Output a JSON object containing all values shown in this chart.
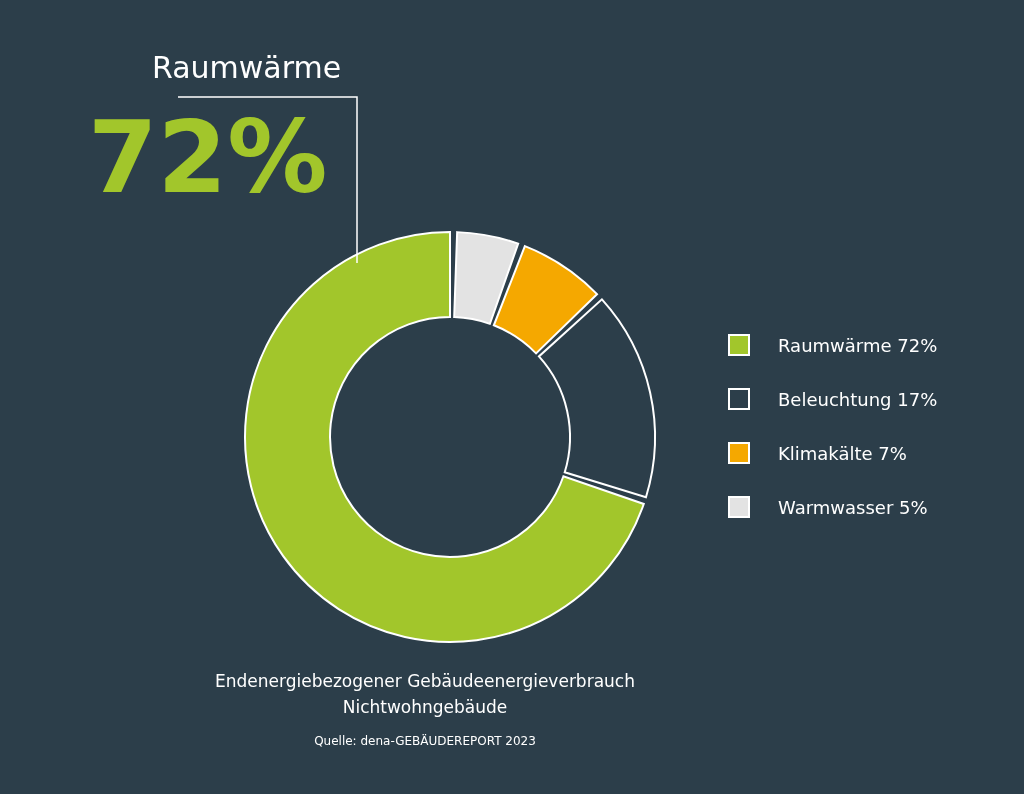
{
  "chart_data": {
    "type": "donut",
    "title": "Endenergiebezogener Gebäudeenergieverbrauch\nNichtwohngebäude",
    "categories": [
      "Raumwärme",
      "Beleuchtung",
      "Klimakälte",
      "Warmwasser"
    ],
    "values": [
      72,
      17,
      7,
      5
    ],
    "value_labels": [
      "72%",
      "17%",
      "7%",
      "5%"
    ],
    "colors": [
      "#a2c62b",
      "#2c3e4a",
      "#f5a800",
      "#e3e3e3"
    ],
    "legend": "right",
    "annotations": [
      "Raumwärme",
      "72%",
      "Quelle: dena-GEBÄUDEREPORT 2023"
    ]
  }
}
